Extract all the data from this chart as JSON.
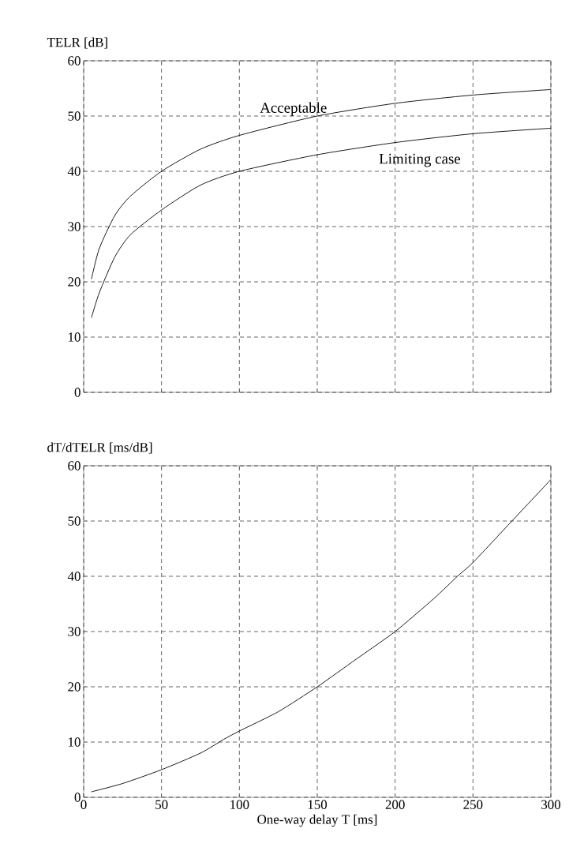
{
  "chart_data": [
    {
      "type": "line",
      "ylabel": "TELR [dB]",
      "xlim": [
        0,
        300
      ],
      "ylim": [
        0,
        60
      ],
      "xticks": [
        0,
        50,
        100,
        150,
        200,
        250,
        300
      ],
      "yticks": [
        0,
        10,
        20,
        30,
        40,
        50,
        60
      ],
      "grid": true,
      "tick_labels": "y",
      "series": [
        {
          "name": "Acceptable",
          "color": "#000000",
          "x": [
            5,
            10,
            20,
            30,
            50,
            75,
            100,
            150,
            200,
            250,
            300
          ],
          "values": [
            20.5,
            26,
            32,
            35.5,
            40,
            44,
            46.5,
            50,
            52.3,
            53.8,
            54.8
          ]
        },
        {
          "name": "Limiting case",
          "color": "#000000",
          "x": [
            5,
            10,
            20,
            30,
            50,
            75,
            100,
            150,
            200,
            250,
            300
          ],
          "values": [
            13.5,
            18,
            24.5,
            28.5,
            33,
            37.5,
            40,
            43,
            45.2,
            46.8,
            47.8
          ]
        }
      ]
    },
    {
      "type": "line",
      "ylabel": "dT/dTELR [ms/dB]",
      "xlabel": "One-way delay T [ms]",
      "xlim": [
        0,
        300
      ],
      "ylim": [
        0,
        60
      ],
      "xticks": [
        0,
        50,
        100,
        150,
        200,
        250,
        300
      ],
      "yticks": [
        0,
        10,
        20,
        30,
        40,
        50,
        60
      ],
      "grid": true,
      "series": [
        {
          "color": "#000000",
          "x": [
            5,
            25,
            50,
            75,
            90,
            100,
            125,
            150,
            175,
            200,
            225,
            240,
            250,
            275,
            300
          ],
          "values": [
            1,
            2.5,
            5,
            8,
            10.5,
            12,
            15.5,
            20,
            25,
            30,
            36,
            40,
            42.5,
            50,
            57.5
          ]
        }
      ]
    }
  ]
}
